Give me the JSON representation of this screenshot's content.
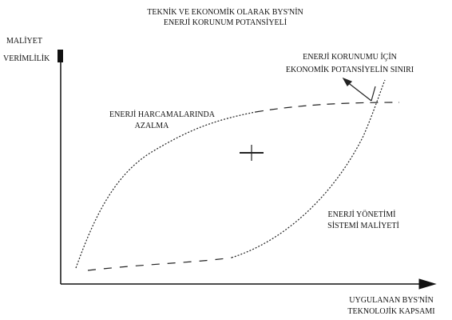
{
  "title": [
    "TEKNİK VE EKONOMİK OLARAK BYS'NİN",
    "ENERJİ KORUNUM POTANSİYELİ"
  ],
  "y_axis_label": [
    "MALİYET",
    "VERİMLİLİK"
  ],
  "x_axis_label": [
    "UYGULANAN BYS'NİN",
    "TEKNOLOJİK KAPSAMI"
  ],
  "annotations": {
    "limit": [
      "ENERJİ KORUNUMU İÇİN",
      "EKONOMİK POTANSİYELİN SINIRI"
    ],
    "savings": [
      "ENERJİ HARCAMALARINDA",
      "AZALMA"
    ],
    "cost": [
      "ENERJİ YÖNETİMİ",
      "SİSTEMİ MALİYETİ"
    ]
  }
}
